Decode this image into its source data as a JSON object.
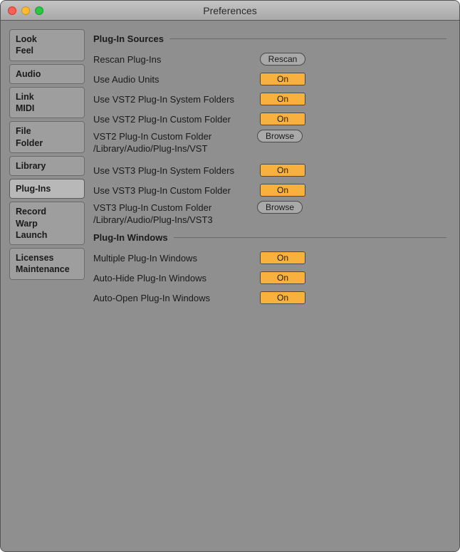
{
  "window": {
    "title": "Preferences"
  },
  "tabs": [
    {
      "label": "Look\nFeel"
    },
    {
      "label": "Audio"
    },
    {
      "label": "Link\nMIDI"
    },
    {
      "label": "File\nFolder"
    },
    {
      "label": "Library"
    },
    {
      "label": "Plug-Ins",
      "active": true
    },
    {
      "label": "Record\nWarp\nLaunch"
    },
    {
      "label": "Licenses\nMaintenance"
    }
  ],
  "colors": {
    "toggle_on": "#f7b13c",
    "button_bg": "#a9a9a9",
    "window_bg": "#8f8f8f",
    "border": "#4a4a4a"
  },
  "sections": {
    "sources": {
      "title": "Plug-In Sources",
      "rescan": {
        "label": "Rescan Plug-Ins",
        "button": "Rescan"
      },
      "au": {
        "label": "Use Audio Units",
        "value": "On"
      },
      "vst2sys": {
        "label": "Use VST2 Plug-In System Folders",
        "value": "On"
      },
      "vst2custom": {
        "label": "Use VST2 Plug-In Custom Folder",
        "value": "On"
      },
      "vst2path": {
        "label": "VST2 Plug-In Custom Folder",
        "button": "Browse",
        "path": "/Library/Audio/Plug-Ins/VST"
      },
      "vst3sys": {
        "label": "Use VST3 Plug-In System Folders",
        "value": "On"
      },
      "vst3custom": {
        "label": "Use VST3 Plug-In Custom Folder",
        "value": "On"
      },
      "vst3path": {
        "label": "VST3 Plug-In Custom Folder",
        "button": "Browse",
        "path": "/Library/Audio/Plug-Ins/VST3"
      }
    },
    "windows": {
      "title": "Plug-In Windows",
      "multiple": {
        "label": "Multiple Plug-In Windows",
        "value": "On"
      },
      "autohide": {
        "label": "Auto-Hide Plug-In Windows",
        "value": "On"
      },
      "autoopen": {
        "label": "Auto-Open Plug-In Windows",
        "value": "On"
      }
    }
  }
}
